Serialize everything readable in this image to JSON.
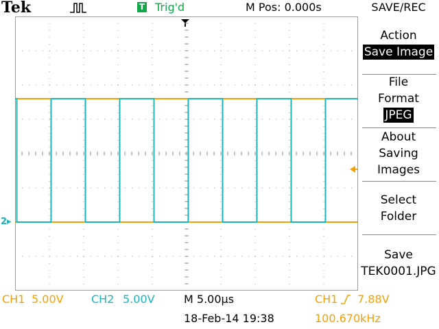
{
  "header": {
    "brand": "Tek",
    "acquisition_icon": "pulse-icon",
    "trigger_indicator": "T",
    "trigger_status": "Trig'd",
    "horizontal_position": "M Pos: 0.000s",
    "menu_title": "SAVE/REC"
  },
  "side_menu": {
    "items": [
      {
        "label": "Action",
        "value": "Save Image"
      },
      {
        "label": "File\nFormat",
        "value": "JPEG"
      },
      {
        "label": "About\nSaving\nImages"
      },
      {
        "label": "Select\nFolder"
      },
      {
        "label": "Save",
        "value": "TEK0001.JPG"
      }
    ],
    "action_label": "Action",
    "action_value": "Save Image",
    "file_line1": "File",
    "file_line2": "Format",
    "file_value": "JPEG",
    "about_line1": "About",
    "about_line2": "Saving",
    "about_line3": "Images",
    "select_line1": "Select",
    "select_line2": "Folder",
    "save_label": "Save",
    "save_value": "TEK0001.JPG"
  },
  "readouts": {
    "ch1_label": "CH1",
    "ch1_scale": "5.00V",
    "ch2_label": "CH2",
    "ch2_scale": "5.00V",
    "timebase": "M 5.00µs",
    "trigger_source": "CH1",
    "trigger_slope_icon": "rising-edge-icon",
    "trigger_level": "7.88V",
    "date_time": "18-Feb-14 19:38",
    "frequency": "100.670kHz"
  },
  "markers": {
    "ch2_ground": "2",
    "trigger_position_icon": "down-arrow-icon",
    "trigger_level_icon": "left-arrow-icon"
  },
  "colors": {
    "ch1": "#f5a000",
    "ch2": "#19b5b8",
    "trigger_green": "#12a84a",
    "graticule": "#9a9a9a"
  },
  "waveforms": {
    "period_divisions": 2.0,
    "ch1_high_div": 3.6,
    "ch1_low_div": 0.0,
    "ch2_high_div": 3.6,
    "ch2_low_div": 0.0,
    "first_edge_div": 0.05
  }
}
